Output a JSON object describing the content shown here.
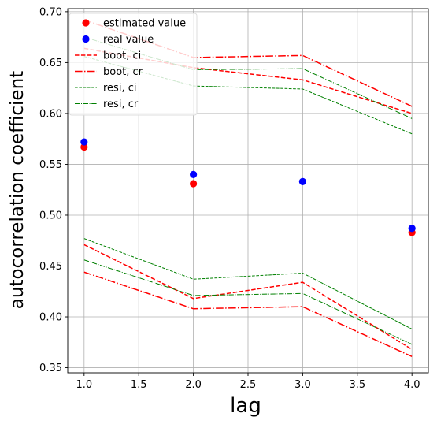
{
  "chart_data": {
    "type": "line",
    "title": "",
    "xlabel": "lag",
    "ylabel": "autocorrelation coefficient",
    "x": [
      1.0,
      2.0,
      3.0,
      4.0
    ],
    "xlim": [
      0.85,
      4.15
    ],
    "ylim": [
      0.345,
      0.703
    ],
    "x_ticks": [
      1.0,
      1.5,
      2.0,
      2.5,
      3.0,
      3.5,
      4.0
    ],
    "x_tick_labels": [
      "1.0",
      "1.5",
      "2.0",
      "2.5",
      "3.0",
      "3.5",
      "4.0"
    ],
    "y_ticks": [
      0.35,
      0.4,
      0.45,
      0.5,
      0.55,
      0.6,
      0.65,
      0.7
    ],
    "y_tick_labels": [
      "0.35",
      "0.40",
      "0.45",
      "0.50",
      "0.55",
      "0.60",
      "0.65",
      "0.70"
    ],
    "grid": true,
    "legend_placement": "top-left",
    "series": [
      {
        "name": "estimated value",
        "kind": "markers",
        "color": "#ff0000",
        "values": [
          0.567,
          0.531,
          null,
          0.483
        ]
      },
      {
        "name": "real value",
        "kind": "markers",
        "color": "#0000ff",
        "values": [
          0.572,
          0.54,
          0.533,
          0.487
        ]
      },
      {
        "name": "boot, ci",
        "kind": "line",
        "style": "dashed",
        "color": "#ff0000",
        "lower": [
          0.471,
          0.418,
          0.434,
          0.368
        ],
        "upper": [
          0.664,
          0.645,
          0.633,
          0.6
        ]
      },
      {
        "name": "boot, cr",
        "kind": "line",
        "style": "dashdot",
        "color": "#ff0000",
        "lower": [
          0.444,
          0.408,
          0.41,
          0.361
        ],
        "upper": [
          0.692,
          0.655,
          0.657,
          0.607
        ]
      },
      {
        "name": "resi, ci",
        "kind": "line",
        "style": "dashed-thin",
        "color": "#008000",
        "lower": [
          0.477,
          0.437,
          0.443,
          0.388
        ],
        "upper": [
          0.656,
          0.627,
          0.624,
          0.58
        ]
      },
      {
        "name": "resi, cr",
        "kind": "line",
        "style": "dashdot-thin",
        "color": "#008000",
        "lower": [
          0.456,
          0.421,
          0.423,
          0.373
        ],
        "upper": [
          0.675,
          0.643,
          0.644,
          0.595
        ]
      }
    ]
  }
}
